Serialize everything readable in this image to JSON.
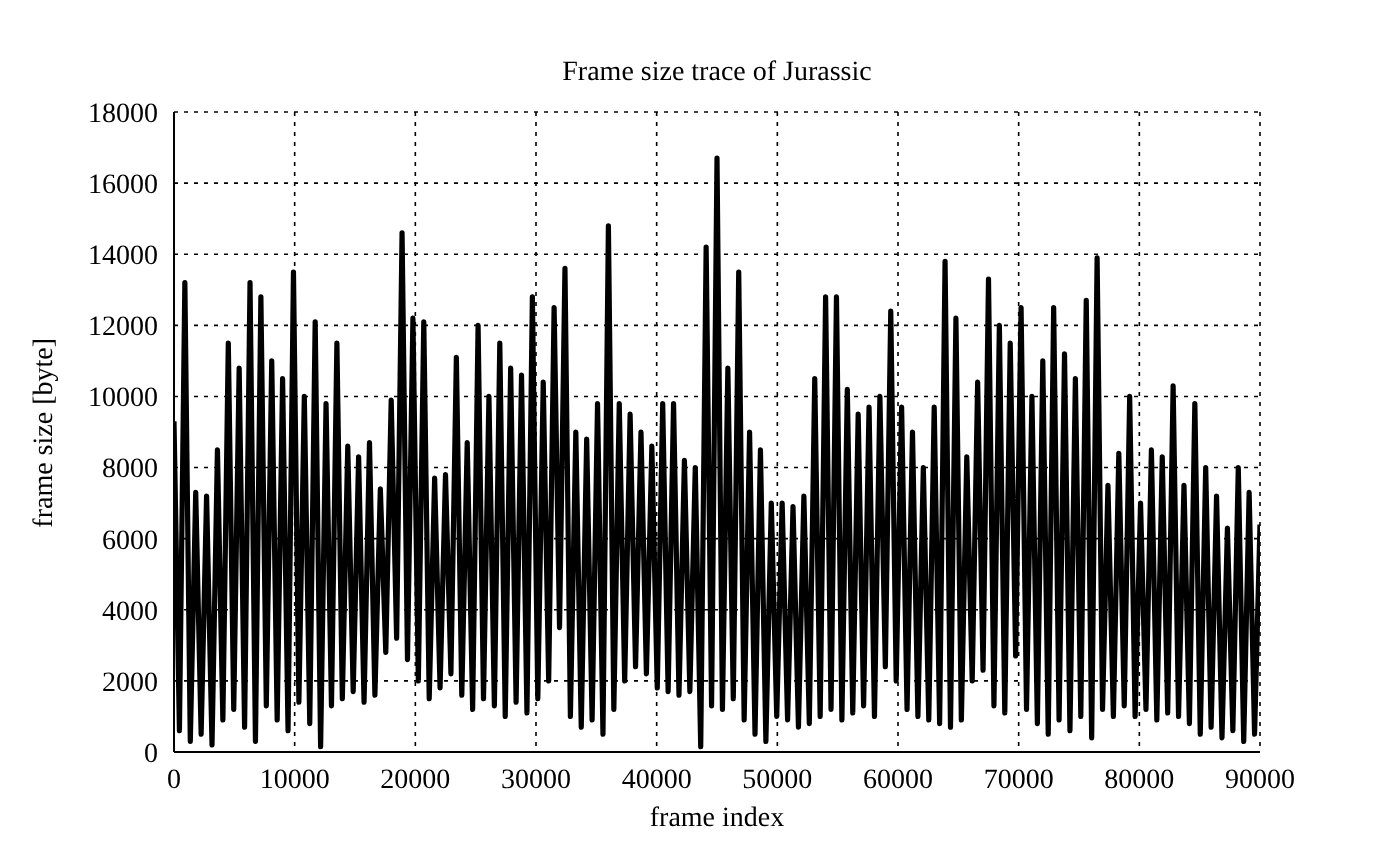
{
  "chart_data": {
    "type": "line",
    "title": "Frame size trace of Jurassic",
    "xlabel": "frame index",
    "ylabel": "frame size [byte]",
    "xlim": [
      0,
      90000
    ],
    "xticks": [
      0,
      10000,
      20000,
      30000,
      40000,
      50000,
      60000,
      70000,
      80000,
      90000
    ],
    "ylim": [
      0,
      18000
    ],
    "yticks": [
      0,
      2000,
      4000,
      6000,
      8000,
      10000,
      12000,
      14000,
      16000,
      18000
    ],
    "grid": true,
    "color": "#000000",
    "x": [
      0,
      450,
      900,
      1350,
      1800,
      2250,
      2700,
      3150,
      3600,
      4050,
      4500,
      4950,
      5400,
      5850,
      6300,
      6750,
      7200,
      7650,
      8100,
      8550,
      9000,
      9450,
      9900,
      10350,
      10800,
      11250,
      11700,
      12150,
      12600,
      13050,
      13500,
      13950,
      14400,
      14850,
      15300,
      15750,
      16200,
      16650,
      17100,
      17550,
      18000,
      18450,
      18900,
      19350,
      19800,
      20250,
      20700,
      21150,
      21600,
      22050,
      22500,
      22950,
      23400,
      23850,
      24300,
      24750,
      25200,
      25650,
      26100,
      26550,
      27000,
      27450,
      27900,
      28350,
      28800,
      29250,
      29700,
      30150,
      30600,
      31050,
      31500,
      31950,
      32400,
      32850,
      33300,
      33750,
      34200,
      34650,
      35100,
      35550,
      36000,
      36450,
      36900,
      37350,
      37800,
      38250,
      38700,
      39150,
      39600,
      40050,
      40500,
      40950,
      41400,
      41850,
      42300,
      42750,
      43200,
      43650,
      44100,
      44550,
      45000,
      45450,
      45900,
      46350,
      46800,
      47250,
      47700,
      48150,
      48600,
      49050,
      49500,
      49950,
      50400,
      50850,
      51300,
      51750,
      52200,
      52650,
      53100,
      53550,
      54000,
      54450,
      54900,
      55350,
      55800,
      56250,
      56700,
      57150,
      57600,
      58050,
      58500,
      58950,
      59400,
      59850,
      60300,
      60750,
      61200,
      61650,
      62100,
      62550,
      63000,
      63450,
      63900,
      64350,
      64800,
      65250,
      65700,
      66150,
      66600,
      67050,
      67500,
      67950,
      68400,
      68850,
      69300,
      69750,
      70200,
      70650,
      71100,
      71550,
      72000,
      72450,
      72900,
      73350,
      73800,
      74250,
      74700,
      75150,
      75600,
      76050,
      76500,
      76950,
      77400,
      77850,
      78300,
      78750,
      79200,
      79650,
      80100,
      80550,
      81000,
      81450,
      81900,
      82350,
      82800,
      83250,
      83700,
      84150,
      84600,
      85050,
      85500,
      85950,
      86400,
      86850,
      87300,
      87750,
      88200,
      88650,
      89100,
      89550,
      90000
    ],
    "values": [
      9300,
      600,
      13200,
      300,
      7300,
      500,
      7200,
      200,
      8500,
      900,
      11500,
      1200,
      10800,
      700,
      13200,
      300,
      12800,
      1300,
      11000,
      900,
      10500,
      600,
      13500,
      1400,
      10000,
      800,
      12100,
      150,
      9800,
      1300,
      11500,
      1500,
      8600,
      1700,
      8300,
      1400,
      8700,
      1600,
      7400,
      2800,
      9900,
      3200,
      14600,
      2600,
      12200,
      2000,
      12100,
      1500,
      7700,
      1800,
      7800,
      2200,
      11100,
      1600,
      8700,
      1200,
      12000,
      1500,
      10000,
      1300,
      11500,
      1000,
      10800,
      1400,
      10600,
      1100,
      12800,
      1500,
      10400,
      2000,
      12500,
      3500,
      13600,
      1000,
      9000,
      700,
      8800,
      900,
      9800,
      500,
      14800,
      1200,
      9800,
      2000,
      9500,
      2400,
      9000,
      2200,
      8600,
      1800,
      9800,
      1700,
      9800,
      1600,
      8200,
      1700,
      8000,
      150,
      14200,
      1300,
      16700,
      1200,
      10800,
      1500,
      13500,
      900,
      9000,
      500,
      8500,
      300,
      7000,
      1000,
      7000,
      900,
      6900,
      700,
      7200,
      800,
      10500,
      1000,
      12800,
      1200,
      12800,
      900,
      10200,
      1100,
      9500,
      1300,
      9700,
      1000,
      10000,
      2400,
      12400,
      2000,
      9700,
      1200,
      9000,
      1000,
      8000,
      900,
      9700,
      800,
      13800,
      700,
      12200,
      900,
      8300,
      2000,
      10400,
      2300,
      13300,
      1300,
      12000,
      1100,
      11500,
      2700,
      12500,
      1200,
      10000,
      800,
      11000,
      500,
      12500,
      900,
      11200,
      600,
      10500,
      1000,
      12700,
      400,
      13900,
      1200,
      7500,
      1000,
      8400,
      1300,
      10000,
      1000,
      7000,
      1200,
      8500,
      900,
      8300,
      1100,
      10300,
      1000,
      7500,
      800,
      9800,
      500,
      8000,
      700,
      7200,
      400,
      6300,
      600,
      8000,
      300,
      7300,
      500,
      6400
    ]
  }
}
